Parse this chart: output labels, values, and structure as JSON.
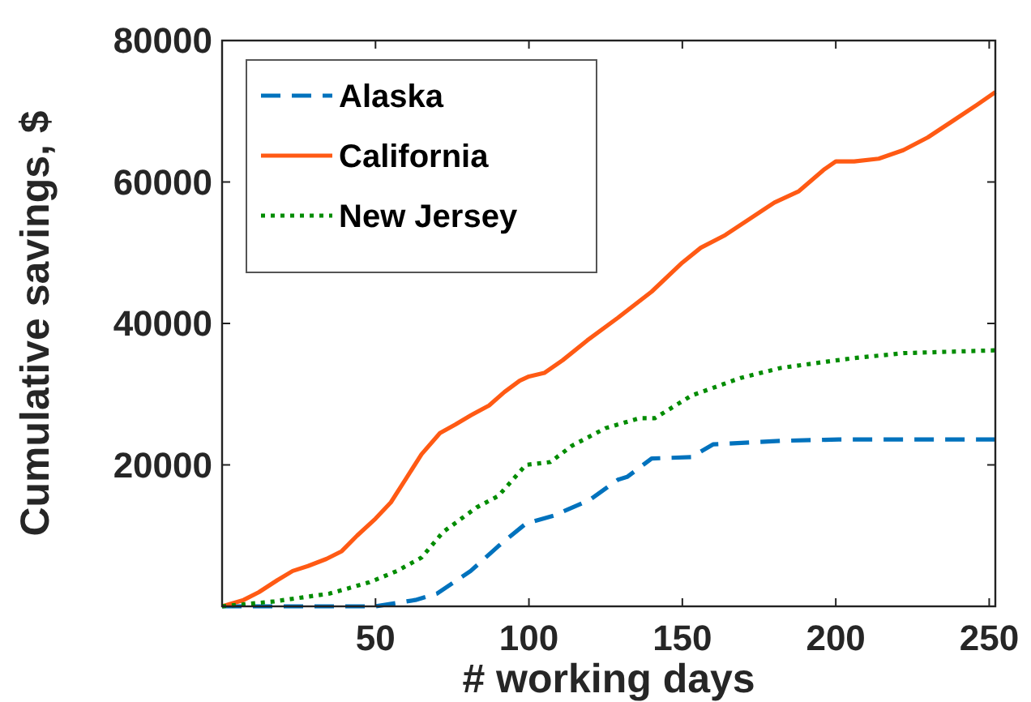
{
  "chart_data": {
    "type": "line",
    "xlabel": "# working days",
    "ylabel": "Cumulative savings, $",
    "xlim": [
      0,
      252
    ],
    "ylim": [
      0,
      80000
    ],
    "xticks": [
      50,
      100,
      150,
      200,
      250
    ],
    "yticks": [
      20000,
      40000,
      60000,
      80000
    ],
    "grid": false,
    "legend": "top left",
    "series": [
      {
        "name": "Alaska",
        "color": "#0072bd",
        "line_style": "dashed",
        "x": [
          0,
          50,
          63,
          70,
          81,
          90,
          99,
          108,
          120,
          129,
          132,
          140,
          153,
          160,
          182,
          201,
          252
        ],
        "values": [
          0,
          0,
          900,
          1800,
          5000,
          8500,
          11700,
          12800,
          15100,
          17900,
          18300,
          20900,
          21100,
          22900,
          23400,
          23600,
          23600
        ]
      },
      {
        "name": "California",
        "color": "#ff5a14",
        "line_style": "solid",
        "x": [
          0,
          7,
          12,
          18,
          23,
          28,
          34,
          39,
          44,
          50,
          55,
          60,
          65,
          71,
          76,
          81,
          87,
          92,
          97,
          100,
          105,
          111,
          119,
          129,
          140,
          150,
          156,
          164,
          172,
          180,
          188,
          196,
          200,
          206,
          214,
          222,
          230,
          238,
          246,
          252
        ],
        "values": [
          0,
          900,
          2000,
          3700,
          5000,
          5700,
          6700,
          7800,
          10000,
          12400,
          14700,
          18100,
          21500,
          24500,
          25700,
          27000,
          28400,
          30300,
          31900,
          32500,
          33000,
          34800,
          37600,
          40800,
          44500,
          48600,
          50700,
          52500,
          54800,
          57100,
          58700,
          61700,
          62900,
          62900,
          63300,
          64500,
          66300,
          68600,
          70900,
          72700
        ]
      },
      {
        "name": "New Jersey",
        "color": "#008c00",
        "line_style": "dotted",
        "x": [
          0,
          17,
          35,
          48,
          57,
          65,
          72,
          83,
          90,
          99,
          107,
          114,
          125,
          136,
          141,
          153,
          169,
          182,
          197,
          206,
          222,
          252
        ],
        "values": [
          0,
          700,
          1800,
          3400,
          5000,
          6900,
          10500,
          14000,
          15600,
          20000,
          20400,
          22700,
          25200,
          26600,
          26600,
          29800,
          32300,
          33700,
          34600,
          35100,
          35800,
          36200
        ]
      }
    ]
  }
}
